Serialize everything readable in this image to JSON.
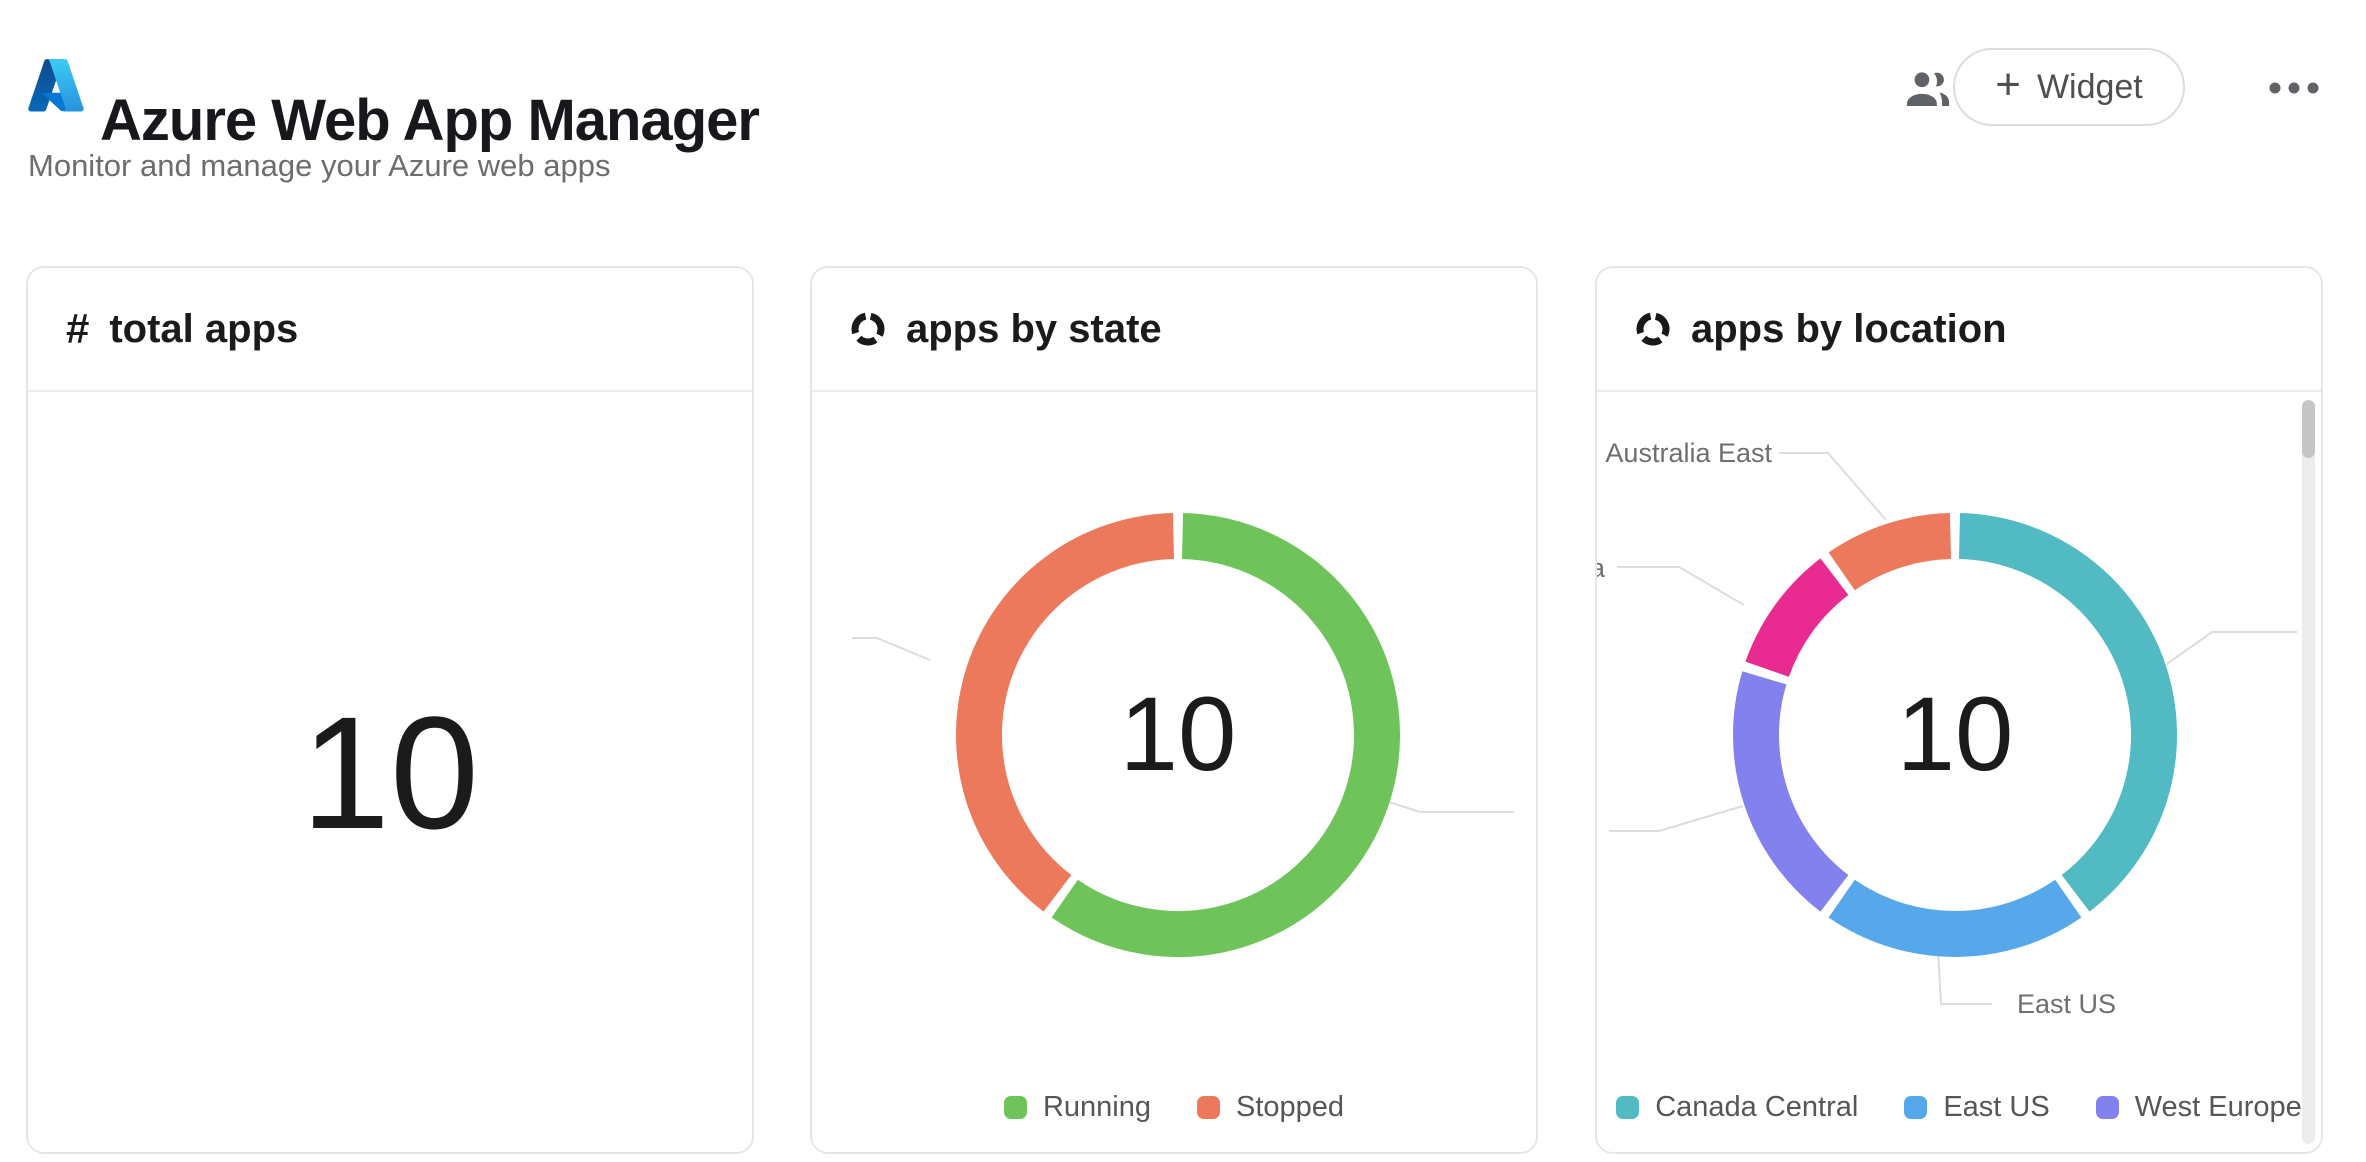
{
  "header": {
    "title": "Azure Web App Manager",
    "subtitle": "Monitor and manage your Azure web apps",
    "actions": {
      "widget_button_plus": "+",
      "widget_button_label": "Widget"
    }
  },
  "cards": [
    {
      "id": "total-apps",
      "icon": "hash",
      "icon_glyph": "#",
      "title": "total apps",
      "value": "10"
    },
    {
      "id": "apps-by-state",
      "icon": "donut",
      "title": "apps by state",
      "center_value": "10",
      "legend": [
        {
          "label": "Running",
          "color": "#6ec45a"
        },
        {
          "label": "Stopped",
          "color": "#ed795c"
        }
      ]
    },
    {
      "id": "apps-by-location",
      "icon": "donut",
      "title": "apps by location",
      "center_value": "10",
      "legend": [
        {
          "label": "Canada Central",
          "color": "#52bac3"
        },
        {
          "label": "East US",
          "color": "#57a8ea"
        },
        {
          "label": "West Europe",
          "color": "#8381ee"
        }
      ]
    }
  ],
  "chart_data": [
    {
      "type": "pie",
      "title": "apps by state",
      "total": 10,
      "center_label": "10",
      "legend_position": "bottom",
      "start_angle": "top",
      "direction": "clockwise",
      "segments": [
        {
          "name": "Running",
          "value": 6,
          "color": "#6ec45a"
        },
        {
          "name": "Stopped",
          "value": 4,
          "color": "#ed795c"
        }
      ]
    },
    {
      "type": "pie",
      "title": "apps by location",
      "total": 10,
      "center_label": "10",
      "legend_position": "bottom",
      "start_angle": "top",
      "direction": "clockwise",
      "segments": [
        {
          "name": "Canada Central",
          "value": 4,
          "color": "#52bac3"
        },
        {
          "name": "East US",
          "value": 2,
          "color": "#57a8ea"
        },
        {
          "name": "West Europe",
          "value": 2,
          "color": "#8381ee"
        },
        {
          "name": "",
          "visible_label_fragment": "a",
          "value": 1,
          "color": "#e92a90"
        },
        {
          "name": "Australia East",
          "value": 1,
          "color": "#ed795c"
        }
      ]
    }
  ]
}
